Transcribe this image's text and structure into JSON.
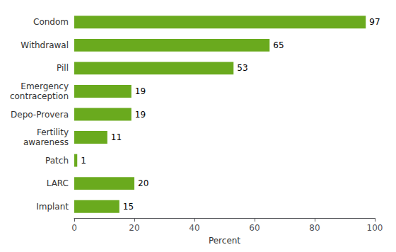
{
  "chart_data": {
    "type": "bar",
    "orientation": "horizontal",
    "categories": [
      "Condom",
      "Withdrawal",
      "Pill",
      "Emergency\ncontraception",
      "Depo-Provera",
      "Fertility\nawareness",
      "Patch",
      "LARC",
      "Implant"
    ],
    "values": [
      97,
      65,
      53,
      19,
      19,
      11,
      1,
      20,
      15
    ],
    "color": "#6aaa1e",
    "xlabel": "Percent",
    "xlim": [
      0,
      100
    ],
    "xticks": [
      0,
      20,
      40,
      60,
      80,
      100
    ],
    "data_labels": true,
    "grid": false
  }
}
